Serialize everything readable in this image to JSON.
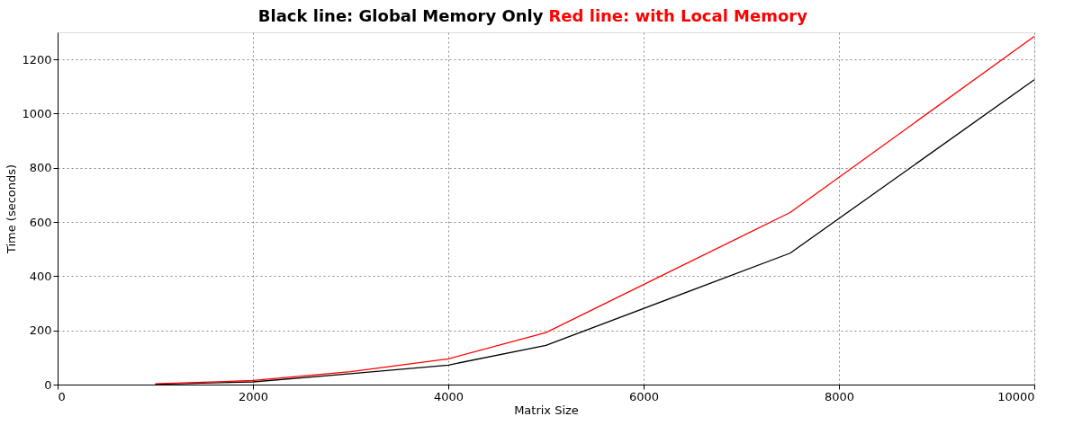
{
  "chart_data": {
    "type": "line",
    "xlabel": "Matrix Size",
    "ylabel": "Time (seconds)",
    "legend": "top",
    "x": [
      1000,
      2000,
      3000,
      4000,
      5000,
      7500,
      10000
    ],
    "series": [
      {
        "name": "Black line: Global Memory Only",
        "color": "#000000",
        "values": [
          1,
          10,
          40,
          72,
          145,
          485,
          1125
        ]
      },
      {
        "name": "Red line: with Local Memory",
        "color": "#ff0000",
        "values": [
          3,
          15,
          48,
          95,
          192,
          635,
          1285
        ]
      }
    ],
    "xlim": [
      0,
      10000
    ],
    "xticks": [
      0,
      2000,
      4000,
      6000,
      8000,
      10000
    ],
    "ylim": [
      0,
      1300
    ],
    "yticks": [
      0,
      200,
      400,
      600,
      800,
      1000,
      1200
    ],
    "grid": true,
    "line_style": "solid",
    "marker": "none"
  }
}
